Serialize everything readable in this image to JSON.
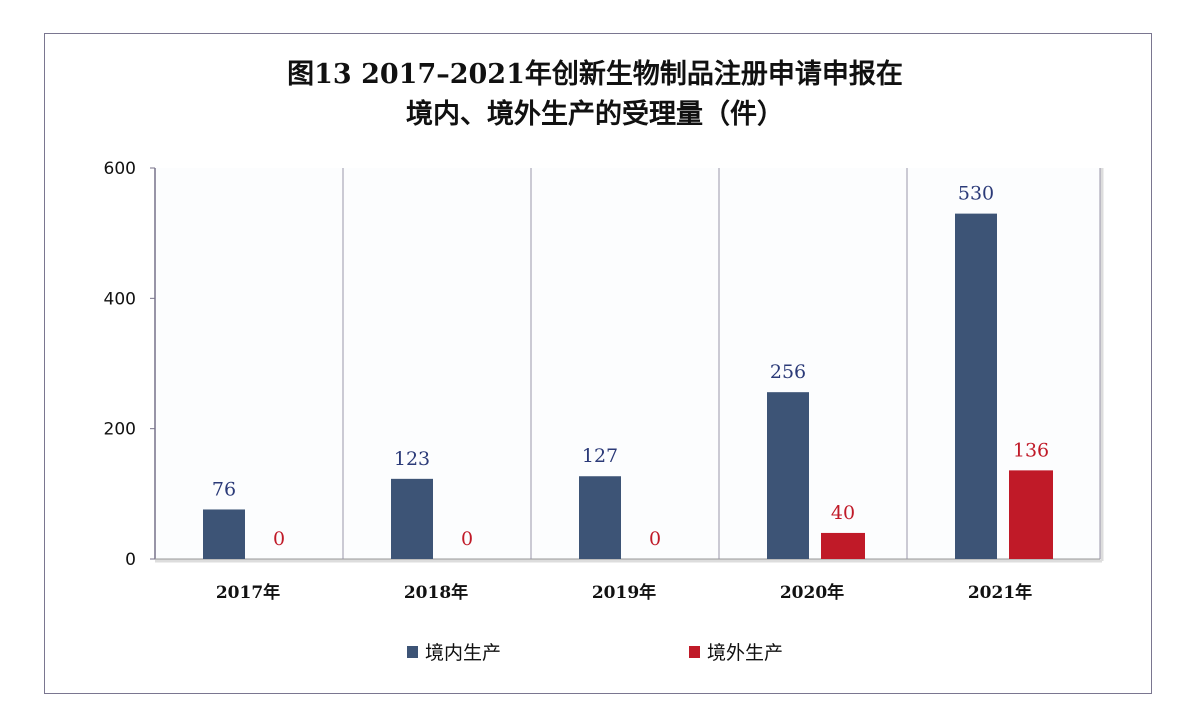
{
  "chart_data": {
    "type": "bar",
    "title_line1": "图13  2017–2021年创新生物制品注册申请申报在",
    "title_line2": "境内、境外生产的受理量（件）",
    "categories": [
      "2017年",
      "2018年",
      "2019年",
      "2020年",
      "2021年"
    ],
    "series": [
      {
        "name": "境内生产",
        "color": "#3d5476",
        "label_color": "#2b3a78",
        "values": [
          76,
          123,
          127,
          256,
          530
        ]
      },
      {
        "name": "境外生产",
        "color": "#c01a28",
        "label_color": "#c01a28",
        "values": [
          0,
          0,
          0,
          40,
          136
        ]
      }
    ],
    "yticks": [
      0,
      200,
      400,
      600
    ],
    "ylim": [
      0,
      600
    ],
    "grid": "vertical separators between categories",
    "legend": "bottom"
  }
}
